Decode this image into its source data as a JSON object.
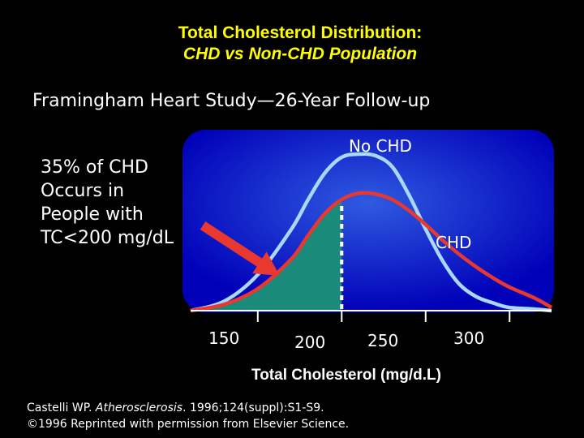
{
  "chart_data": {
    "type": "line",
    "title": "Total Cholesterol Distribution:",
    "subtitle_italic": "CHD vs Non-CHD Population",
    "study": "Framingham Heart Study—26-Year Follow-up",
    "xlabel": "Total Cholesterol (mg/d.L)",
    "ylabel": "",
    "x_ticks": [
      "150",
      "200",
      "250",
      "300"
    ],
    "xlim": [
      110,
      325
    ],
    "ylim": [
      0,
      1
    ],
    "threshold": 200,
    "series": [
      {
        "name": "No CHD",
        "color": "#a8d8ff",
        "x": [
          110,
          130,
          150,
          170,
          180,
          190,
          200,
          210,
          220,
          230,
          240,
          250,
          260,
          270,
          280,
          290,
          300,
          315,
          325
        ],
        "y": [
          0.0,
          0.06,
          0.23,
          0.52,
          0.71,
          0.88,
          0.98,
          1.0,
          0.99,
          0.92,
          0.74,
          0.52,
          0.32,
          0.17,
          0.09,
          0.05,
          0.02,
          0.01,
          0.0
        ]
      },
      {
        "name": "CHD",
        "color": "#e8382f",
        "x": [
          110,
          130,
          150,
          170,
          180,
          190,
          200,
          210,
          220,
          230,
          240,
          250,
          260,
          270,
          280,
          290,
          300,
          315,
          325
        ],
        "y": [
          0.0,
          0.04,
          0.14,
          0.33,
          0.48,
          0.62,
          0.71,
          0.75,
          0.745,
          0.71,
          0.64,
          0.55,
          0.45,
          0.36,
          0.28,
          0.21,
          0.15,
          0.08,
          0.02
        ]
      }
    ],
    "annotations": {
      "callout_lines": [
        "35% of CHD",
        "Occurs in",
        "People with",
        "TC<200 mg/dL"
      ],
      "no_chd_label": "No CHD",
      "chd_label": "CHD"
    }
  },
  "citation": {
    "line1_prefix": "Castelli WP. ",
    "line1_journal": "Atherosclerosis",
    "line1_suffix": ". 1996;124(suppl):S1-S9.",
    "line2": "©1996 Reprinted with permission from Elsevier Science."
  },
  "colors": {
    "title": "#ffff00",
    "panel_dark": "#0000c0",
    "panel_light": "#2a4ed8",
    "shaded_area": "#1a8a7a",
    "arrow": "#e8382f"
  }
}
